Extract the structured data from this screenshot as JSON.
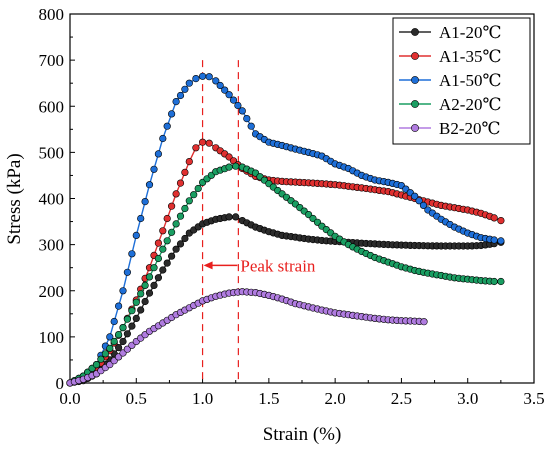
{
  "chart_data": {
    "type": "line",
    "xlabel": "Strain (%)",
    "ylabel": "Stress (kPa)",
    "xlim": [
      0,
      3.5
    ],
    "ylim": [
      0,
      800
    ],
    "xticks": [
      "0.0",
      "0.5",
      "1.0",
      "1.5",
      "2.0",
      "2.5",
      "3.0",
      "3.5"
    ],
    "yticks": [
      "0",
      "100",
      "200",
      "300",
      "400",
      "500",
      "600",
      "700",
      "800"
    ],
    "grid": false,
    "legend_position": "top-right",
    "series": [
      {
        "name": "A1-20℃",
        "color": "#2b2b2b",
        "points": [
          [
            0,
            0
          ],
          [
            0.1,
            5
          ],
          [
            0.2,
            20
          ],
          [
            0.3,
            50
          ],
          [
            0.4,
            90
          ],
          [
            0.5,
            140
          ],
          [
            0.6,
            195
          ],
          [
            0.7,
            245
          ],
          [
            0.8,
            290
          ],
          [
            0.9,
            325
          ],
          [
            1.0,
            345
          ],
          [
            1.1,
            355
          ],
          [
            1.2,
            360
          ],
          [
            1.25,
            360
          ],
          [
            1.3,
            352
          ],
          [
            1.4,
            338
          ],
          [
            1.5,
            328
          ],
          [
            1.6,
            320
          ],
          [
            1.7,
            316
          ],
          [
            1.8,
            312
          ],
          [
            1.9,
            309
          ],
          [
            2.0,
            307
          ],
          [
            2.2,
            303
          ],
          [
            2.4,
            300
          ],
          [
            2.6,
            298
          ],
          [
            2.8,
            297
          ],
          [
            3.0,
            297
          ],
          [
            3.1,
            298
          ],
          [
            3.2,
            302
          ],
          [
            3.25,
            305
          ]
        ]
      },
      {
        "name": "A1-35℃",
        "color": "#e03030",
        "points": [
          [
            0,
            0
          ],
          [
            0.1,
            10
          ],
          [
            0.2,
            30
          ],
          [
            0.3,
            70
          ],
          [
            0.4,
            120
          ],
          [
            0.5,
            180
          ],
          [
            0.6,
            250
          ],
          [
            0.7,
            330
          ],
          [
            0.8,
            410
          ],
          [
            0.9,
            480
          ],
          [
            0.95,
            510
          ],
          [
            1.0,
            522
          ],
          [
            1.05,
            520
          ],
          [
            1.1,
            510
          ],
          [
            1.2,
            490
          ],
          [
            1.3,
            465
          ],
          [
            1.4,
            448
          ],
          [
            1.5,
            440
          ],
          [
            1.6,
            437
          ],
          [
            1.8,
            434
          ],
          [
            2.0,
            430
          ],
          [
            2.2,
            423
          ],
          [
            2.4,
            415
          ],
          [
            2.6,
            400
          ],
          [
            2.8,
            385
          ],
          [
            3.0,
            375
          ],
          [
            3.1,
            368
          ],
          [
            3.2,
            358
          ],
          [
            3.25,
            352
          ]
        ]
      },
      {
        "name": "A1-50℃",
        "color": "#1e6fd8",
        "points": [
          [
            0,
            0
          ],
          [
            0.1,
            15
          ],
          [
            0.2,
            40
          ],
          [
            0.3,
            100
          ],
          [
            0.4,
            200
          ],
          [
            0.5,
            320
          ],
          [
            0.6,
            430
          ],
          [
            0.7,
            530
          ],
          [
            0.8,
            610
          ],
          [
            0.9,
            650
          ],
          [
            0.95,
            660
          ],
          [
            1.0,
            665
          ],
          [
            1.05,
            664
          ],
          [
            1.1,
            655
          ],
          [
            1.2,
            625
          ],
          [
            1.3,
            590
          ],
          [
            1.4,
            540
          ],
          [
            1.5,
            522
          ],
          [
            1.6,
            515
          ],
          [
            1.7,
            507
          ],
          [
            1.8,
            500
          ],
          [
            1.9,
            492
          ],
          [
            2.0,
            475
          ],
          [
            2.1,
            465
          ],
          [
            2.2,
            450
          ],
          [
            2.3,
            440
          ],
          [
            2.4,
            435
          ],
          [
            2.5,
            428
          ],
          [
            2.6,
            405
          ],
          [
            2.7,
            375
          ],
          [
            2.8,
            355
          ],
          [
            2.9,
            338
          ],
          [
            3.0,
            325
          ],
          [
            3.1,
            315
          ],
          [
            3.2,
            310
          ],
          [
            3.25,
            308
          ]
        ]
      },
      {
        "name": "A2-20℃",
        "color": "#1a9e62",
        "points": [
          [
            0,
            0
          ],
          [
            0.1,
            15
          ],
          [
            0.2,
            40
          ],
          [
            0.3,
            75
          ],
          [
            0.4,
            120
          ],
          [
            0.5,
            175
          ],
          [
            0.6,
            230
          ],
          [
            0.7,
            290
          ],
          [
            0.8,
            345
          ],
          [
            0.9,
            395
          ],
          [
            1.0,
            435
          ],
          [
            1.1,
            458
          ],
          [
            1.2,
            468
          ],
          [
            1.25,
            470
          ],
          [
            1.3,
            468
          ],
          [
            1.4,
            455
          ],
          [
            1.5,
            432
          ],
          [
            1.6,
            410
          ],
          [
            1.7,
            388
          ],
          [
            1.8,
            365
          ],
          [
            1.9,
            340
          ],
          [
            2.0,
            318
          ],
          [
            2.1,
            300
          ],
          [
            2.2,
            285
          ],
          [
            2.3,
            272
          ],
          [
            2.4,
            262
          ],
          [
            2.5,
            252
          ],
          [
            2.6,
            244
          ],
          [
            2.7,
            238
          ],
          [
            2.8,
            233
          ],
          [
            2.9,
            228
          ],
          [
            3.0,
            225
          ],
          [
            3.1,
            222
          ],
          [
            3.2,
            220
          ],
          [
            3.25,
            220
          ]
        ]
      },
      {
        "name": "B2-20℃",
        "color": "#b07ce0",
        "points": [
          [
            0,
            0
          ],
          [
            0.1,
            8
          ],
          [
            0.2,
            20
          ],
          [
            0.3,
            40
          ],
          [
            0.4,
            65
          ],
          [
            0.5,
            90
          ],
          [
            0.6,
            112
          ],
          [
            0.7,
            130
          ],
          [
            0.8,
            148
          ],
          [
            0.9,
            163
          ],
          [
            1.0,
            178
          ],
          [
            1.1,
            188
          ],
          [
            1.2,
            195
          ],
          [
            1.3,
            198
          ],
          [
            1.4,
            196
          ],
          [
            1.5,
            190
          ],
          [
            1.6,
            182
          ],
          [
            1.7,
            172
          ],
          [
            1.8,
            165
          ],
          [
            1.9,
            158
          ],
          [
            2.0,
            152
          ],
          [
            2.1,
            148
          ],
          [
            2.2,
            144
          ],
          [
            2.3,
            140
          ],
          [
            2.4,
            137
          ],
          [
            2.5,
            135
          ],
          [
            2.6,
            134
          ],
          [
            2.67,
            133
          ]
        ]
      }
    ],
    "annotations": {
      "peak_strain_label": "Peak strain",
      "peak_strain_lines_x": [
        1.0,
        1.27
      ],
      "arrow_y": 255
    }
  }
}
